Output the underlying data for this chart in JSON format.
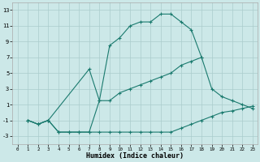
{
  "xlabel": "Humidex (Indice chaleur)",
  "background_color": "#cce8e8",
  "grid_color": "#aacccc",
  "line_color": "#1a7a6e",
  "xlim": [
    -0.5,
    23.5
  ],
  "ylim": [
    -4,
    14
  ],
  "xticks": [
    0,
    1,
    2,
    3,
    4,
    5,
    6,
    7,
    8,
    9,
    10,
    11,
    12,
    13,
    14,
    15,
    16,
    17,
    18,
    19,
    20,
    21,
    22,
    23
  ],
  "yticks": [
    -3,
    -1,
    1,
    3,
    5,
    7,
    9,
    11,
    13
  ],
  "line1_x": [
    1,
    2,
    3,
    4,
    5,
    6,
    7,
    8,
    9,
    10,
    11,
    12,
    13,
    14,
    15,
    16,
    17,
    18,
    19,
    20,
    21,
    22,
    23
  ],
  "line1_y": [
    -1,
    -1.5,
    -1,
    -2.5,
    -2.5,
    -2.5,
    -2.5,
    -2.5,
    -2.5,
    -2.5,
    -2.5,
    -2.5,
    -2.5,
    -2.5,
    -2.5,
    -2.0,
    -1.5,
    -1.0,
    -0.5,
    0.0,
    0.2,
    0.5,
    0.8
  ],
  "line2_x": [
    1,
    2,
    3,
    4,
    5,
    6,
    7,
    8,
    9,
    10,
    11,
    12,
    13,
    14,
    15,
    16,
    17,
    18,
    19,
    20,
    21,
    22,
    23
  ],
  "line2_y": [
    -1,
    -1.5,
    -1,
    -2.5,
    -2.5,
    -2.5,
    -2.5,
    1.5,
    1.5,
    2.5,
    3.0,
    3.5,
    4.0,
    4.5,
    5.0,
    6.0,
    6.5,
    7.0,
    3.0,
    2.0,
    1.5,
    1.0,
    0.5
  ],
  "line3_x": [
    1,
    2,
    3,
    7,
    8,
    9,
    10,
    11,
    12,
    13,
    14,
    15,
    16,
    17,
    18
  ],
  "line3_y": [
    -1,
    -1.5,
    -1,
    5.5,
    1.5,
    8.5,
    9.5,
    11.0,
    11.5,
    11.5,
    12.5,
    12.5,
    11.5,
    10.5,
    7.0
  ]
}
